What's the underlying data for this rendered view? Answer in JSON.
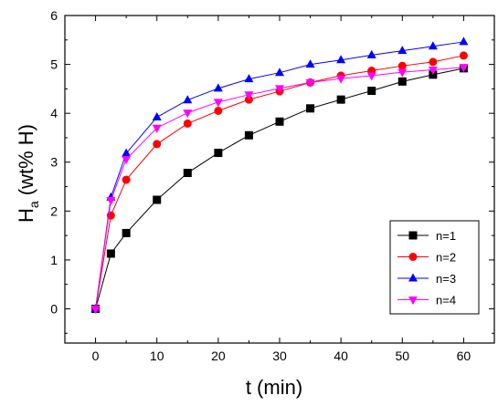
{
  "chart_data": {
    "type": "line",
    "xlabel": "t (min)",
    "ylabel_main": "H",
    "ylabel_sub": "a",
    "ylabel_rest": " (wt% H)",
    "xlim": [
      -5,
      65
    ],
    "ylim": [
      -0.7,
      6
    ],
    "x_ticks": [
      0,
      10,
      20,
      30,
      40,
      50,
      60
    ],
    "y_ticks": [
      0,
      1,
      2,
      3,
      4,
      5,
      6
    ],
    "grid": false,
    "legend_position": "lower-right",
    "x": [
      0,
      2.5,
      5,
      10,
      15,
      20,
      25,
      30,
      35,
      40,
      45,
      50,
      55,
      60
    ],
    "series": [
      {
        "name": "n=1",
        "color": "#000000",
        "marker": "square",
        "values": [
          0,
          1.13,
          1.55,
          2.23,
          2.78,
          3.19,
          3.55,
          3.83,
          4.1,
          4.28,
          4.46,
          4.65,
          4.79,
          4.92
        ]
      },
      {
        "name": "n=2",
        "color": "#ff0000",
        "marker": "circle",
        "values": [
          0,
          1.91,
          2.64,
          3.37,
          3.79,
          4.05,
          4.28,
          4.45,
          4.63,
          4.77,
          4.87,
          4.97,
          5.05,
          5.18
        ]
      },
      {
        "name": "n=3",
        "color": "#0000ff",
        "marker": "triangle-up",
        "values": [
          0,
          2.28,
          3.18,
          3.92,
          4.27,
          4.51,
          4.7,
          4.83,
          5.0,
          5.09,
          5.19,
          5.28,
          5.37,
          5.46
        ]
      },
      {
        "name": "n=4",
        "color": "#ff00ff",
        "marker": "triangle-down",
        "values": [
          0,
          2.22,
          3.06,
          3.7,
          4.01,
          4.23,
          4.38,
          4.51,
          4.63,
          4.71,
          4.77,
          4.84,
          4.89,
          4.94
        ]
      }
    ]
  }
}
